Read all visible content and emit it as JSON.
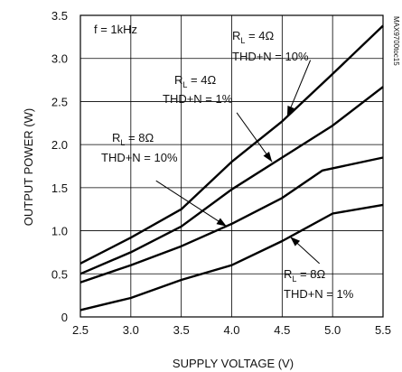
{
  "chart_data": {
    "type": "line",
    "xlabel": "SUPPLY VOLTAGE (V)",
    "ylabel": "OUTPUT POWER (W)",
    "xlim": [
      2.5,
      5.5
    ],
    "ylim": [
      0,
      3.5
    ],
    "x_ticks": [
      "2.5",
      "3.0",
      "3.5",
      "4.0",
      "4.5",
      "5.0",
      "5.5"
    ],
    "y_ticks": [
      "0",
      "0.5",
      "1.0",
      "1.5",
      "2.0",
      "2.5",
      "3.0",
      "3.5"
    ],
    "grid": true,
    "corner_label": "MAX9700toc15",
    "condition_note": "f = 1kHz",
    "series": [
      {
        "label_r": "R",
        "label_sub": "L",
        "label_val": " = 4Ω",
        "label_thd": "THD+N = 10%",
        "points": [
          [
            2.5,
            0.62
          ],
          [
            3.0,
            0.92
          ],
          [
            3.5,
            1.25
          ],
          [
            4.0,
            1.8
          ],
          [
            4.5,
            2.27
          ],
          [
            5.0,
            2.82
          ],
          [
            5.5,
            3.38
          ]
        ]
      },
      {
        "label_r": "R",
        "label_sub": "L",
        "label_val": " = 4Ω",
        "label_thd": "THD+N = 1%",
        "points": [
          [
            2.5,
            0.5
          ],
          [
            3.0,
            0.75
          ],
          [
            3.5,
            1.05
          ],
          [
            4.0,
            1.48
          ],
          [
            4.5,
            1.85
          ],
          [
            5.0,
            2.22
          ],
          [
            5.5,
            2.67
          ]
        ]
      },
      {
        "label_r": "R",
        "label_sub": "L",
        "label_val": " = 8Ω",
        "label_thd": "THD+N = 10%",
        "points": [
          [
            2.5,
            0.4
          ],
          [
            3.0,
            0.6
          ],
          [
            3.5,
            0.82
          ],
          [
            4.0,
            1.08
          ],
          [
            4.5,
            1.38
          ],
          [
            4.9,
            1.7
          ],
          [
            5.5,
            1.85
          ]
        ]
      },
      {
        "label_r": "R",
        "label_sub": "L",
        "label_val": " = 8Ω",
        "label_thd": "THD+N = 1%",
        "points": [
          [
            2.5,
            0.08
          ],
          [
            3.0,
            0.22
          ],
          [
            3.5,
            0.43
          ],
          [
            4.0,
            0.6
          ],
          [
            4.5,
            0.88
          ],
          [
            5.0,
            1.2
          ],
          [
            5.5,
            1.3
          ]
        ]
      }
    ]
  }
}
